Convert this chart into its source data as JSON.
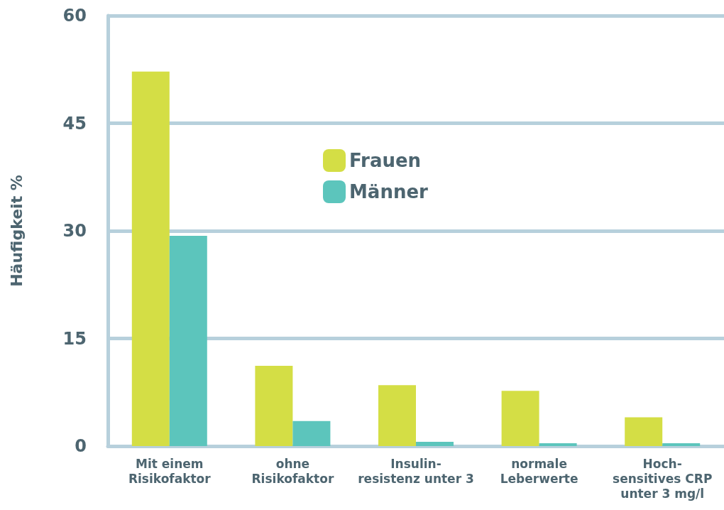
{
  "chart_data": {
    "type": "bar",
    "ylabel": "Häufigkeit %",
    "categories": [
      "Mit einem\nRisikofaktor",
      "ohne\nRisikofaktor",
      "Insulin-\nresistenz unter 3",
      "normale\nLeberwerte",
      "Hoch-\nsensitives CRP\nunter 3 mg/l"
    ],
    "series": [
      {
        "name": "Frauen",
        "color": "#d4de45",
        "values": [
          52.2,
          11.2,
          8.5,
          7.7,
          4.0
        ]
      },
      {
        "name": "Männer",
        "color": "#5cc5bc",
        "values": [
          29.3,
          3.5,
          0.6,
          0.4,
          0.4
        ]
      }
    ],
    "ylim": [
      0,
      60
    ],
    "yticks": [
      0,
      15,
      30,
      45,
      60
    ],
    "grid": "y",
    "legend": "top"
  }
}
